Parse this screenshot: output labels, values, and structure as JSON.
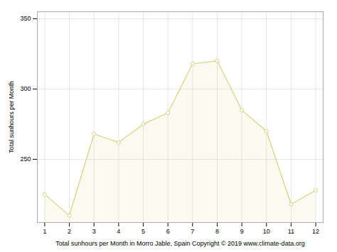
{
  "chart_data": {
    "type": "area",
    "x": [
      1,
      2,
      3,
      4,
      5,
      6,
      7,
      8,
      9,
      10,
      11,
      12
    ],
    "values": [
      225,
      210,
      268,
      262,
      275,
      283,
      318,
      320,
      285,
      270,
      218,
      228
    ],
    "xlabel": "Total sunhours per Month in Morro Jable, Spain Copyright © 2019 www.climate-data.org",
    "ylabel": "Total sunhours per Month",
    "xlim": [
      0.7,
      12.3
    ],
    "xticks": [
      1,
      2,
      3,
      4,
      5,
      6,
      7,
      8,
      9,
      10,
      11,
      12
    ],
    "ylim": [
      205,
      355
    ],
    "yticks": [
      250,
      300,
      350
    ],
    "grid": true,
    "color": "#d4d480",
    "marker": "circle"
  }
}
